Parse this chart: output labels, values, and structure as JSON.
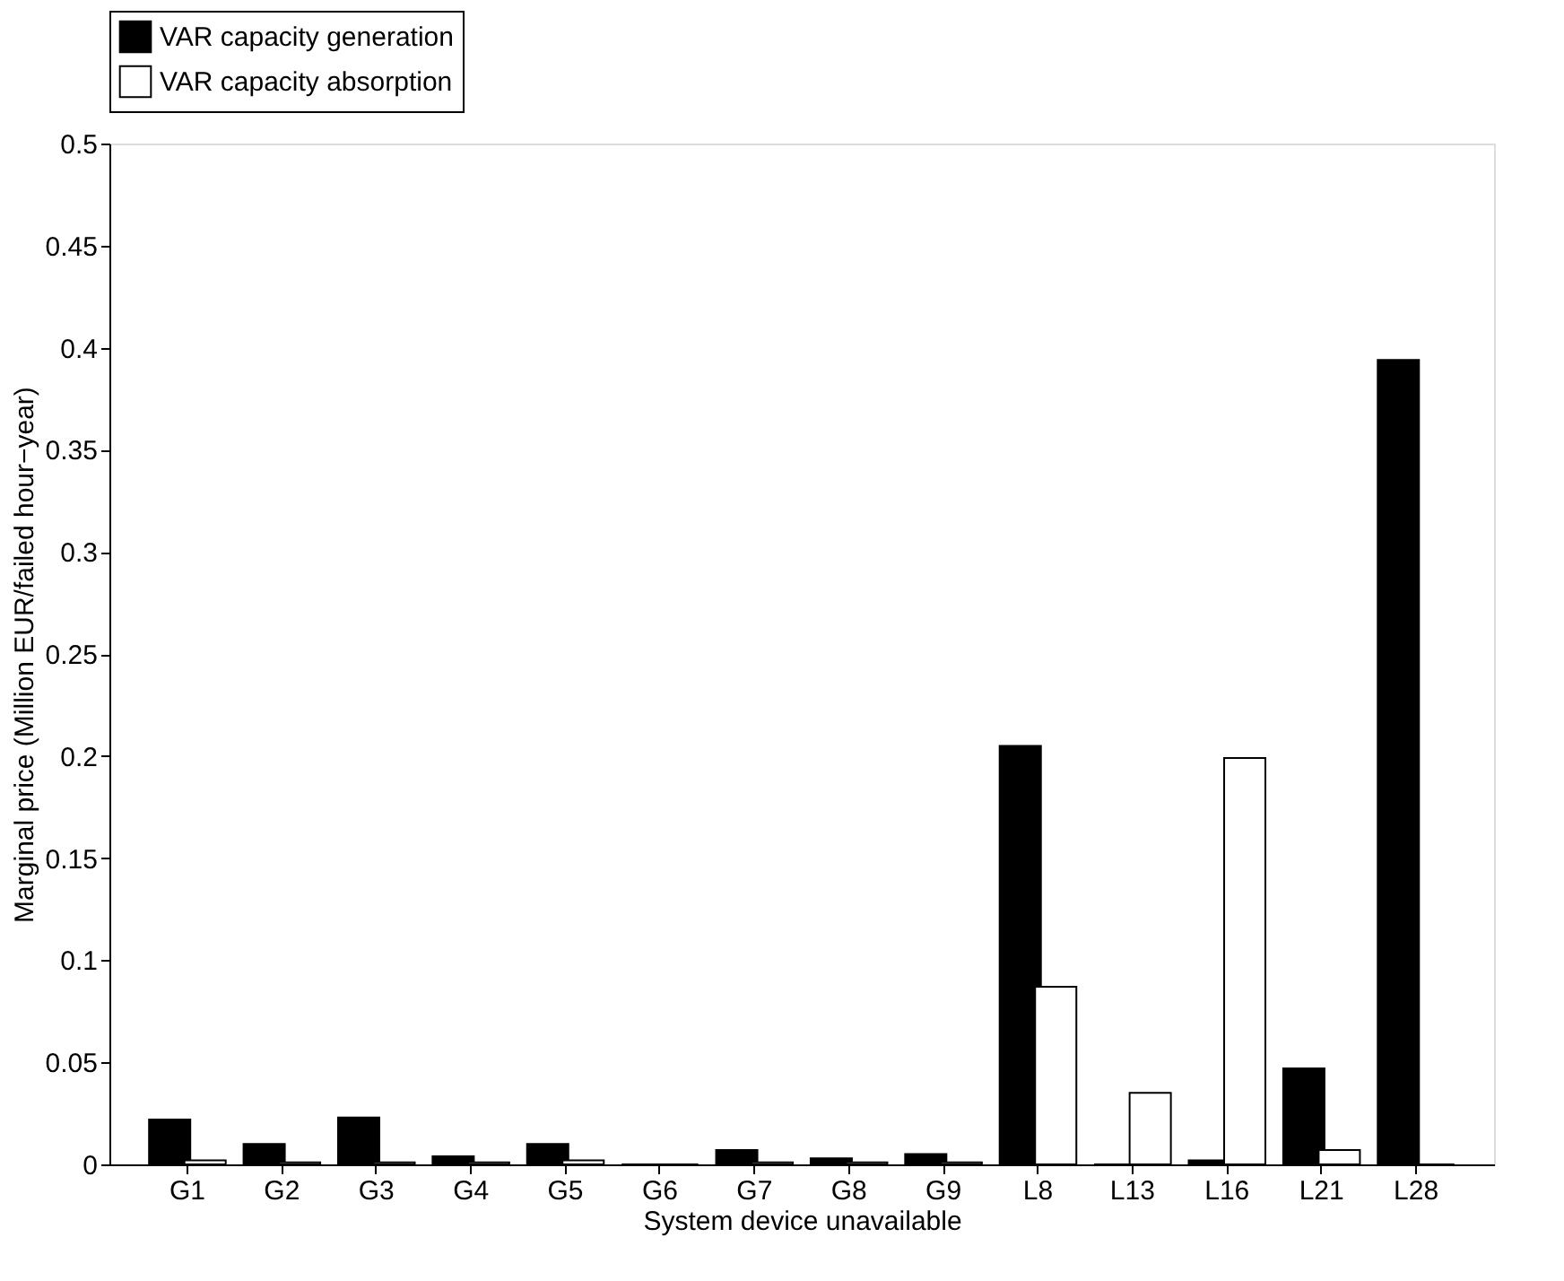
{
  "chart_data": {
    "type": "bar",
    "xlabel": "System device unavailable",
    "ylabel": "Marginal price (Million EUR/failed hour−year)",
    "categories": [
      "G1",
      "G2",
      "G3",
      "G4",
      "G5",
      "G6",
      "G7",
      "G8",
      "G9",
      "L8",
      "L13",
      "L16",
      "L21",
      "L28"
    ],
    "series": [
      {
        "name": "VAR capacity generation",
        "color": "#000000",
        "values": [
          0.022,
          0.01,
          0.023,
          0.004,
          0.01,
          0,
          0.007,
          0.003,
          0.005,
          0.205,
          0,
          0.002,
          0.047,
          0.394
        ]
      },
      {
        "name": "VAR capacity absorption",
        "color": "#ffffff",
        "values": [
          0.002,
          0.001,
          0.001,
          0.001,
          0.002,
          0,
          0.001,
          0.001,
          0.001,
          0.087,
          0.035,
          0.199,
          0.007,
          0
        ]
      }
    ],
    "ylim": [
      0,
      0.5
    ],
    "yticks": [
      0,
      0.05,
      0.1,
      0.15,
      0.2,
      0.25,
      0.3,
      0.35,
      0.4,
      0.45,
      0.5
    ],
    "grid": false,
    "legend": "top"
  }
}
